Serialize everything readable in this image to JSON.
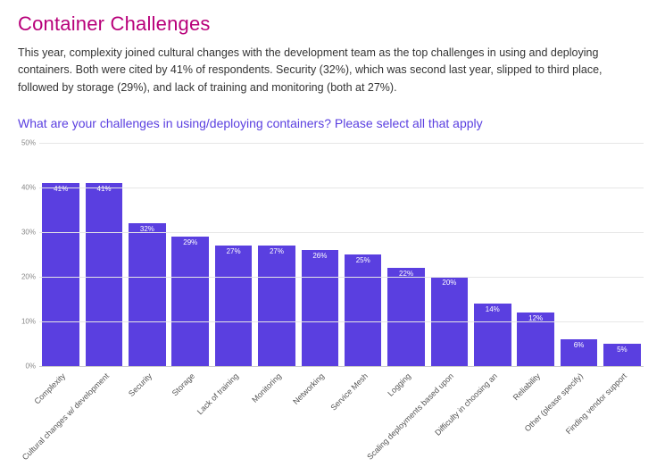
{
  "title": "Container Challenges",
  "title_color": "#b8007a",
  "description": "This year, complexity joined cultural changes with the development team as the top challenges in using and deploying containers. Both were cited by 41% of respondents. Security (32%), which was second last year, slipped to third place, followed by storage (29%), and lack of training and monitoring (both at 27%).",
  "subtitle": "What are your challenges in using/deploying containers? Please select all that apply",
  "subtitle_color": "#5a3fe0",
  "chart": {
    "type": "bar",
    "ylim": [
      0,
      50
    ],
    "ytick_step": 10,
    "ytick_suffix": "%",
    "bar_color": "#5a3fe0",
    "bar_label_color": "#ffffff",
    "grid_color": "#e6e6e6",
    "axis_color": "#cccccc",
    "background_color": "#ffffff",
    "bar_width": 0.86,
    "value_suffix": "%",
    "categories": [
      "Complexity",
      "Cultural changes w/ development",
      "Security",
      "Storage",
      "Lack of training",
      "Monitoring",
      "Networking",
      "Service Mesh",
      "Logging",
      "Scaling deployments based upon",
      "Difficulty in choosing an",
      "Reliability",
      "Other (please specify)",
      "Finding vendor support"
    ],
    "values": [
      41,
      41,
      32,
      29,
      27,
      27,
      26,
      25,
      22,
      20,
      14,
      12,
      6,
      5
    ]
  }
}
